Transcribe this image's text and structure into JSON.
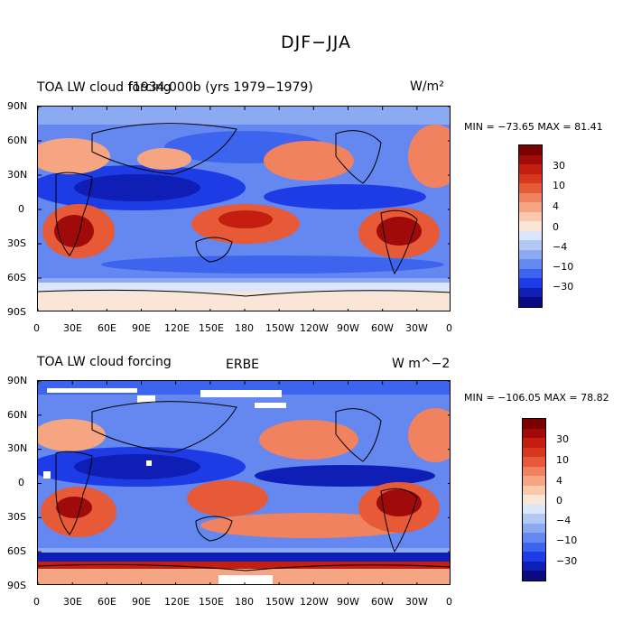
{
  "figure": {
    "title": "DJF−JJA"
  },
  "palette": [
    "#0a0a82",
    "#0f1eb4",
    "#1e3ce6",
    "#3c64ee",
    "#6487f0",
    "#8caaf2",
    "#b4c8f5",
    "#dce6fa",
    "#fae6d7",
    "#fac8aa",
    "#f5a582",
    "#f0825f",
    "#e65a37",
    "#d7371e",
    "#c31e0f",
    "#a00a0a",
    "#7d0000"
  ],
  "axes": {
    "lat_labels": [
      "90N",
      "60N",
      "30N",
      "0",
      "30S",
      "60S",
      "90S"
    ],
    "lon_labels": [
      "0",
      "30E",
      "60E",
      "90E",
      "120E",
      "150E",
      "180",
      "150W",
      "120W",
      "90W",
      "60W",
      "30W",
      "0"
    ]
  },
  "colorbar": {
    "tick_labels": [
      "30",
      "10",
      "4",
      "0",
      "−4",
      "−10",
      "−30"
    ]
  },
  "panels": [
    {
      "id": "model",
      "title_left": "TOA LW cloud forcing",
      "title_center_overlap": "f1934.000b (yrs 1979−1979)",
      "units": "W/m²",
      "stats": "MIN = −73.65 MAX =  81.41"
    },
    {
      "id": "obs",
      "title_left": "TOA LW cloud forcing",
      "title_center": "ERBE",
      "units": "W m^−2",
      "stats": "MIN = −106.05 MAX =  78.82"
    }
  ]
}
